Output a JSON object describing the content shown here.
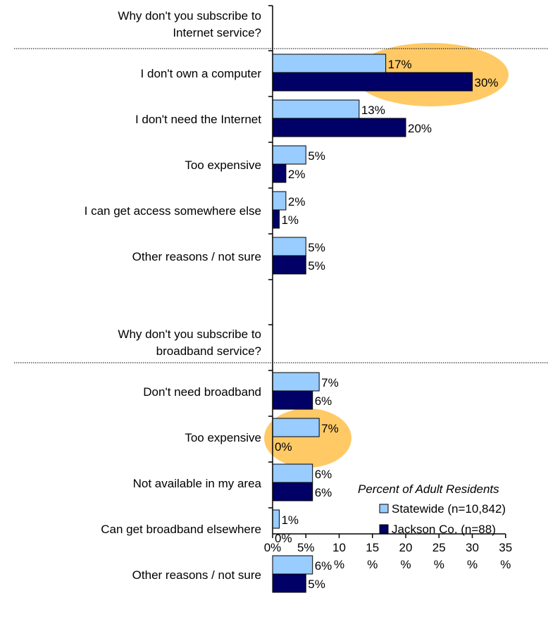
{
  "chart_data": {
    "type": "bar",
    "orientation": "horizontal",
    "xlim": [
      0,
      35
    ],
    "x_ticks": [
      "0%",
      "5%",
      "10 %",
      "15 %",
      "20 %",
      "25 %",
      "30 %",
      "35 %"
    ],
    "legend": {
      "title": "Percent of Adult Residents",
      "placement": "bottom-right",
      "entries": [
        "Statewide (n=10,842)",
        "Jackson Co. (n=88)"
      ]
    },
    "series_colors": [
      "#99ccff",
      "#000066"
    ],
    "highlight_color": "#ffc966",
    "groups": [
      {
        "title": "Why don't you subscribe to Internet service?",
        "categories": [
          "I don't own a computer",
          "I don't need the Internet",
          "Too expensive",
          "I can get access somewhere else",
          "Other reasons / not sure"
        ],
        "series": [
          {
            "name": "Statewide (n=10,842)",
            "values": [
              17,
              13,
              5,
              2,
              5
            ],
            "labels": [
              "17%",
              "13%",
              "5%",
              "2%",
              "5%"
            ]
          },
          {
            "name": "Jackson Co. (n=88)",
            "values": [
              30,
              20,
              2,
              1,
              5
            ],
            "labels": [
              "30%",
              "20%",
              "2%",
              "1%",
              "5%"
            ]
          }
        ],
        "highlighted_category": "I don't own a computer"
      },
      {
        "title": "Why don't you subscribe to broadband service?",
        "categories": [
          "Don't need broadband",
          "Too expensive",
          "Not available in my area",
          "Can get broadband elsewhere",
          "Other reasons / not sure"
        ],
        "series": [
          {
            "name": "Statewide (n=10,842)",
            "values": [
              7,
              7,
              6,
              1,
              6
            ],
            "labels": [
              "7%",
              "7%",
              "6%",
              "1%",
              "6%"
            ]
          },
          {
            "name": "Jackson Co. (n=88)",
            "values": [
              6,
              0,
              6,
              0,
              5
            ],
            "labels": [
              "6%",
              "0%",
              "6%",
              "0%",
              "5%"
            ]
          }
        ],
        "highlighted_category": "Too expensive"
      }
    ]
  }
}
